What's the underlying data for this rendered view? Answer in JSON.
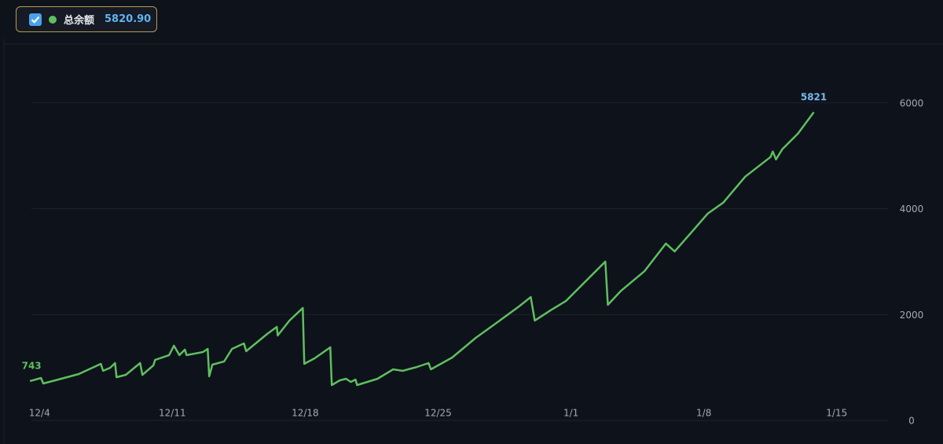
{
  "chart_data": {
    "type": "line",
    "legend": {
      "value": "5820.90"
    },
    "x": [
      -0.5,
      0.08,
      0.2,
      0.83,
      2.07,
      3.23,
      3.35,
      3.73,
      3.98,
      4.06,
      4.55,
      5.3,
      5.42,
      6.0,
      6.09,
      6.83,
      7.08,
      7.37,
      7.66,
      7.75,
      8.61,
      8.86,
      8.94,
      9.11,
      9.73,
      10.14,
      10.77,
      10.89,
      12.0,
      12.5,
      12.55,
      13.17,
      13.87,
      13.95,
      14.49,
      15.32,
      15.4,
      15.82,
      16.15,
      16.4,
      16.65,
      16.73,
      17.81,
      18.63,
      19.13,
      19.88,
      20.5,
      20.62,
      21.74,
      22.98,
      24.02,
      25.26,
      25.88,
      26.09,
      26.92,
      27.74,
      28.36,
      29.81,
      29.94,
      30.64,
      31.88,
      33.0,
      33.46,
      34.37,
      35.2,
      36.02,
      37.18,
      38.51,
      38.63,
      38.8,
      39.13,
      39.96,
      40.79
    ],
    "series": [
      {
        "name": "总余额",
        "color": "#5fbf5f",
        "values": [
          743,
          802,
          698,
          757,
          876,
          1069,
          936,
          995,
          1084,
          817,
          861,
          1084,
          861,
          1040,
          1143,
          1233,
          1411,
          1233,
          1337,
          1233,
          1292,
          1351,
          832,
          1054,
          1114,
          1351,
          1455,
          1307,
          1634,
          1767,
          1604,
          1886,
          2124,
          1069,
          1173,
          1381,
          668,
          757,
          787,
          728,
          772,
          668,
          787,
          965,
          936,
          1010,
          1084,
          965,
          1188,
          1559,
          1827,
          2153,
          2331,
          1886,
          2079,
          2257,
          2480,
          3000,
          2183,
          2450,
          2822,
          3341,
          3193,
          3564,
          3906,
          4113,
          4604,
          4975,
          5079,
          4930,
          5123,
          5420,
          5821
        ],
        "value_labels": [
          "743",
          null,
          null,
          null,
          null,
          null,
          null,
          null,
          null,
          null,
          null,
          null,
          null,
          null,
          null,
          null,
          null,
          null,
          null,
          null,
          null,
          null,
          null,
          null,
          null,
          null,
          null,
          null,
          null,
          null,
          null,
          null,
          null,
          null,
          null,
          null,
          null,
          null,
          null,
          null,
          null,
          null,
          null,
          null,
          null,
          null,
          null,
          null,
          null,
          null,
          null,
          null,
          null,
          null,
          null,
          null,
          null,
          null,
          null,
          null,
          null,
          null,
          null,
          null,
          null,
          null,
          null,
          null,
          null,
          null,
          null,
          null,
          "5821"
        ]
      }
    ],
    "xlim": [
      -1.5,
      44.7
    ],
    "xticks": [
      {
        "value": 0,
        "label": "12/4"
      },
      {
        "value": 7,
        "label": "12/11"
      },
      {
        "value": 14,
        "label": "12/18"
      },
      {
        "value": 21,
        "label": "12/25"
      },
      {
        "value": 28,
        "label": "1/1"
      },
      {
        "value": 35,
        "label": "1/8"
      },
      {
        "value": 42,
        "label": "1/15"
      }
    ],
    "ylim": [
      0,
      7110
    ],
    "yticks": [
      0,
      2000,
      4000,
      6000
    ],
    "grid": true
  }
}
